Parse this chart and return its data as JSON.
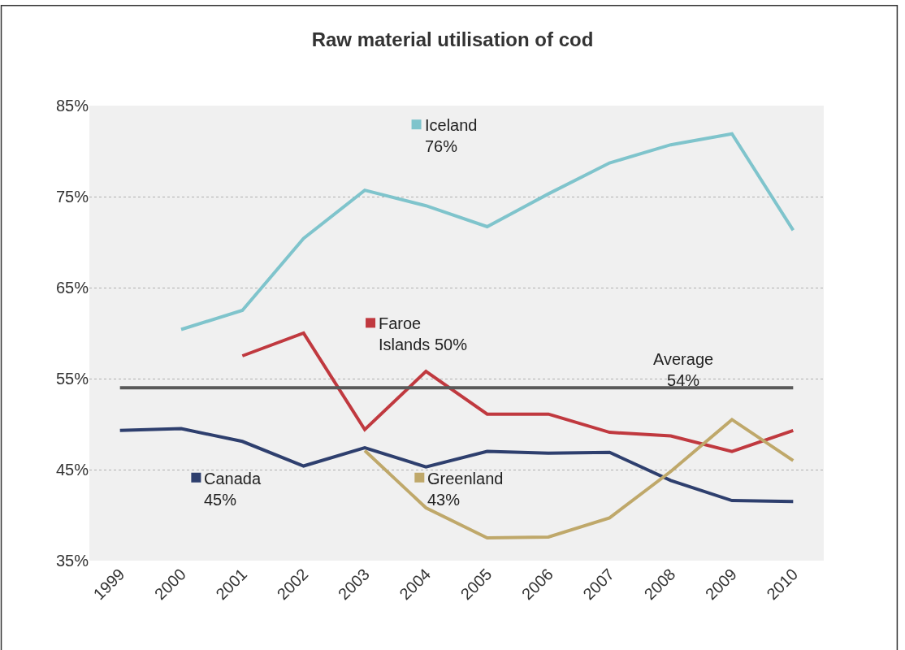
{
  "chart_data": {
    "type": "line",
    "title": "Raw material utilisation of cod",
    "categories": [
      "1999",
      "2000",
      "2001",
      "2002",
      "2003",
      "2004",
      "2005",
      "2006",
      "2007",
      "2008",
      "2009",
      "2010"
    ],
    "series": [
      {
        "name": "Iceland\n76%",
        "color": "#7fc4cc",
        "values": [
          null,
          60.4,
          62.5,
          70.4,
          75.7,
          74.0,
          71.7,
          75.3,
          78.7,
          80.7,
          81.9,
          71.3
        ]
      },
      {
        "name": "Faroe\nIslands 50%",
        "color": "#c0393f",
        "values": [
          null,
          null,
          57.5,
          60.0,
          49.4,
          55.8,
          51.1,
          51.1,
          49.1,
          48.7,
          47.0,
          49.3
        ]
      },
      {
        "name": "Canada\n45%",
        "color": "#2e3f6e",
        "values": [
          49.3,
          49.5,
          48.1,
          45.4,
          47.4,
          45.3,
          47.0,
          46.8,
          46.9,
          43.8,
          41.6,
          41.5
        ]
      },
      {
        "name": "Greenland\n43%",
        "color": "#bfa86a",
        "values": [
          null,
          null,
          null,
          null,
          47.1,
          40.8,
          37.5,
          37.6,
          39.7,
          44.8,
          50.5,
          46.0
        ]
      }
    ],
    "ref_lines": [
      {
        "axis": "y",
        "value": 54,
        "label": "Average\n54%",
        "color": "#595959"
      }
    ],
    "ylim": [
      35,
      85
    ],
    "yticks": [
      {
        "value": 35,
        "label": "35%"
      },
      {
        "value": 45,
        "label": "45%"
      },
      {
        "value": 55,
        "label": "55%"
      },
      {
        "value": 65,
        "label": "65%"
      },
      {
        "value": 75,
        "label": "75%"
      },
      {
        "value": 85,
        "label": "85%"
      }
    ],
    "grid": "y",
    "legend": "top left",
    "marker": "none",
    "line_style": "solid"
  }
}
